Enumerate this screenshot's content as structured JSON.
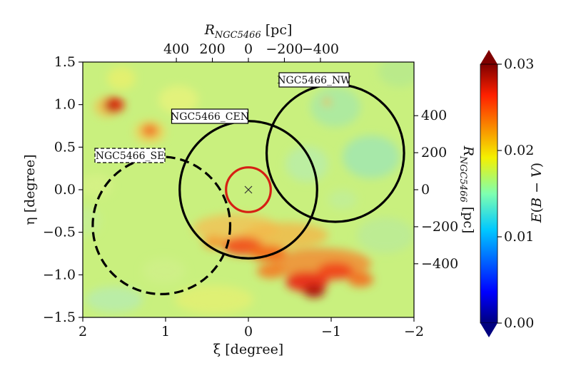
{
  "chart_data": {
    "type": "heatmap",
    "title": "",
    "xlabel": "ξ [degree]",
    "ylabel": "η [degree]",
    "top_label": "R_NGC5466 [pc]",
    "right_label": "R_NGC5466 [pc]",
    "colorbar_label": "E(B − V)",
    "xlim": [
      2,
      -2
    ],
    "ylim": [
      -1.5,
      1.5
    ],
    "x_ticks": [
      2,
      1,
      0,
      -1,
      -2
    ],
    "y_ticks": [
      -1.5,
      -1.0,
      -0.5,
      0.0,
      0.5,
      1.0,
      1.5
    ],
    "x_tick_labels": [
      "2",
      "1",
      "0",
      "−1",
      "−2"
    ],
    "y_tick_labels": [
      "−1.5",
      "−1.0",
      "−0.5",
      "0.0",
      "0.5",
      "1.0",
      "1.5"
    ],
    "top_ticks_pc": [
      400,
      200,
      0,
      -200,
      -400
    ],
    "top_tick_labels": [
      "400",
      "200",
      "0",
      "−200",
      "−400"
    ],
    "right_ticks_pc": [
      400,
      200,
      0,
      -200,
      -400
    ],
    "right_tick_labels": [
      "400",
      "200",
      "0",
      "−200",
      "−400"
    ],
    "colorbar_ticks": [
      0.0,
      0.01,
      0.02,
      0.03
    ],
    "colorbar_tick_labels": [
      "0.00",
      "0.01",
      "0.02",
      "0.03"
    ],
    "colorbar_range": [
      0.0,
      0.03
    ],
    "colormap": "jet",
    "cluster_center": {
      "xi": 0.0,
      "eta": 0.0,
      "marker": "x"
    },
    "regions": [
      {
        "name": "NGC5466_SE",
        "xi": 1.05,
        "eta": -0.42,
        "radius_deg": 0.83,
        "style": "dashed",
        "color": "#000000"
      },
      {
        "name": "NGC5466_CEN",
        "xi": 0.0,
        "eta": 0.0,
        "radius_deg": 0.83,
        "style": "solid",
        "color": "#000000"
      },
      {
        "name": "NGC5466_NW",
        "xi": -1.05,
        "eta": 0.43,
        "radius_deg": 0.83,
        "style": "solid",
        "color": "#000000"
      },
      {
        "name": "",
        "xi": 0.0,
        "eta": 0.0,
        "radius_deg": 0.27,
        "style": "solid",
        "color": "#d62014"
      }
    ],
    "grid": false
  }
}
